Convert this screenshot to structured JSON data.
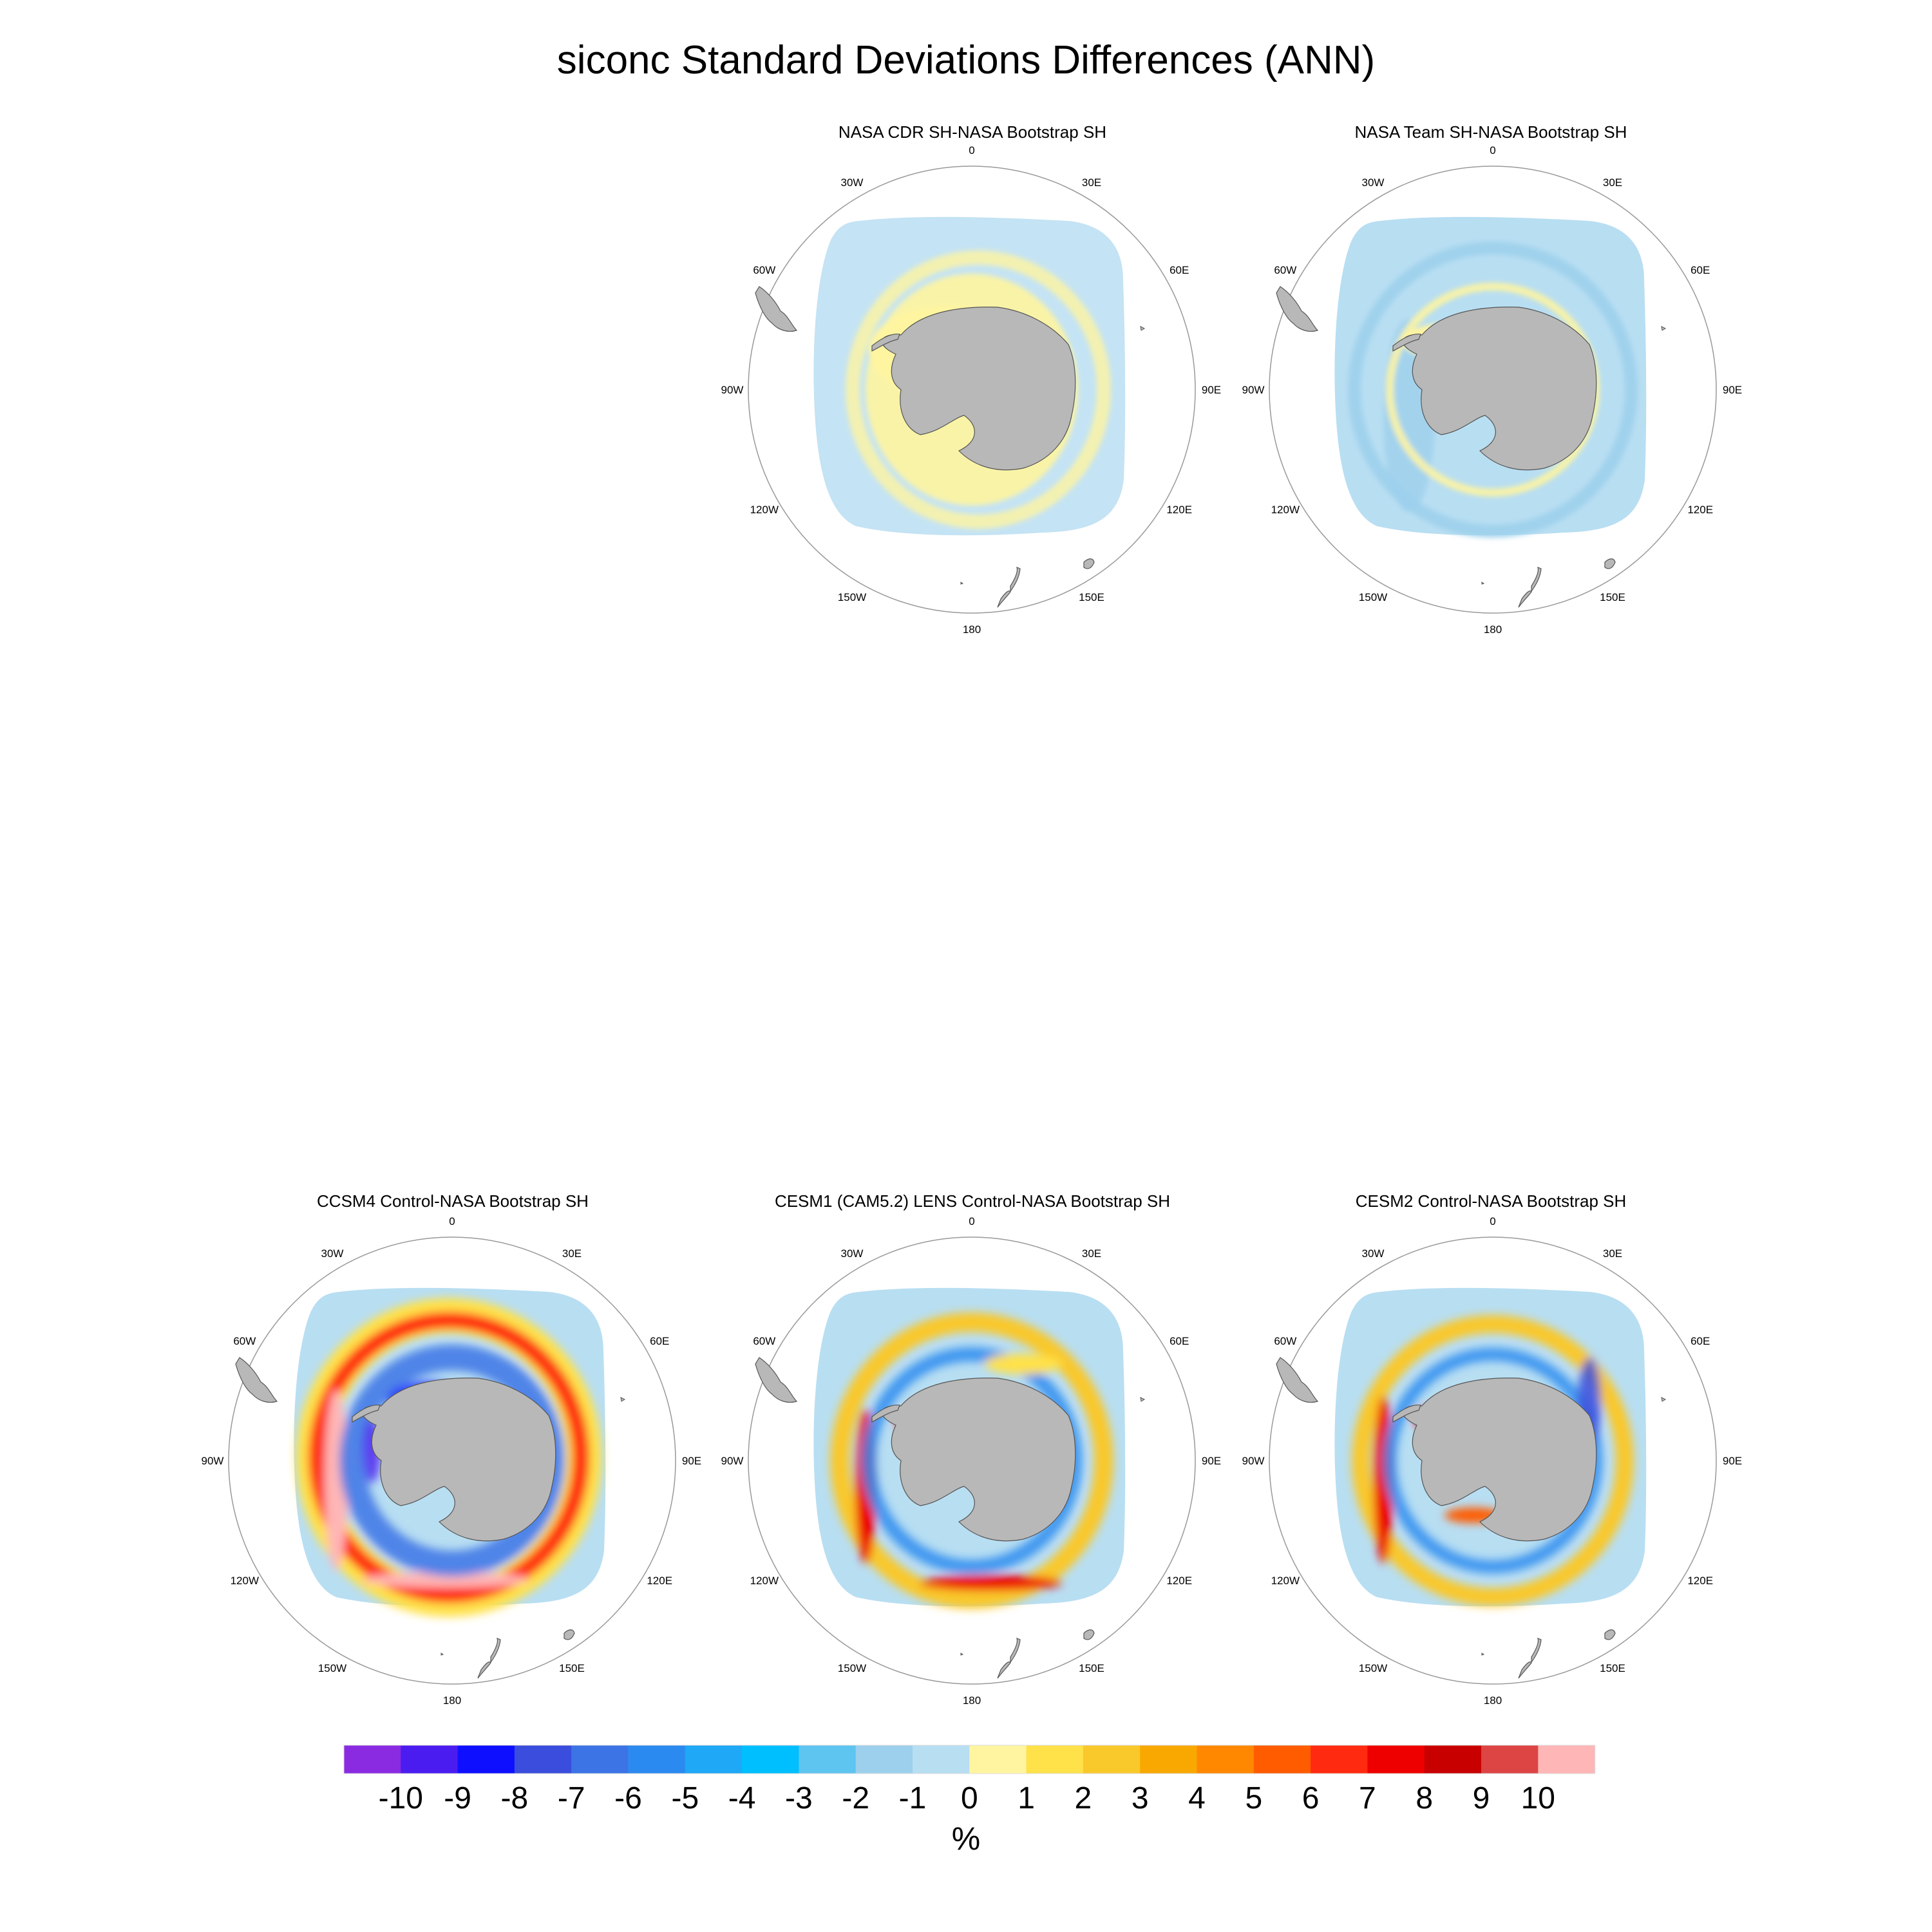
{
  "title": "siconc Standard Deviations Differences (ANN)",
  "panels": [
    {
      "title": "NASA CDR SH-NASA Bootstrap SH",
      "pattern": "cdr"
    },
    {
      "title": "NASA Team SH-NASA Bootstrap SH",
      "pattern": "team"
    },
    {
      "title": "CCSM4 Control-NASA Bootstrap SH",
      "pattern": "ccsm4"
    },
    {
      "title": "CESM1 (CAM5.2) LENS Control-NASA Bootstrap SH",
      "pattern": "cesm1"
    },
    {
      "title": "CESM2 Control-NASA Bootstrap SH",
      "pattern": "cesm2"
    }
  ],
  "lon_labels": [
    "0",
    "30E",
    "60E",
    "90E",
    "120E",
    "150E",
    "180",
    "150W",
    "120W",
    "90W",
    "60W",
    "30W"
  ],
  "colorbar": {
    "labels": [
      "-10",
      "-9",
      "-8",
      "-7",
      "-6",
      "-5",
      "-4",
      "-3",
      "-2",
      "-1",
      "0",
      "1",
      "2",
      "3",
      "4",
      "5",
      "6",
      "7",
      "8",
      "9",
      "10"
    ],
    "colors": [
      "#8a2be2",
      "#4b1cf0",
      "#0f0fff",
      "#3a4ddc",
      "#3c74e6",
      "#2b8af0",
      "#1ea8f5",
      "#00bfff",
      "#5ec4f0",
      "#9dd0ec",
      "#b8def2",
      "#fff5a0",
      "#ffe14a",
      "#f9c82a",
      "#f8a800",
      "#ff8800",
      "#ff5c00",
      "#ff2a10",
      "#ee0000",
      "#c80000",
      "#dd4444",
      "#ffb6b6"
    ],
    "units": "%"
  }
}
